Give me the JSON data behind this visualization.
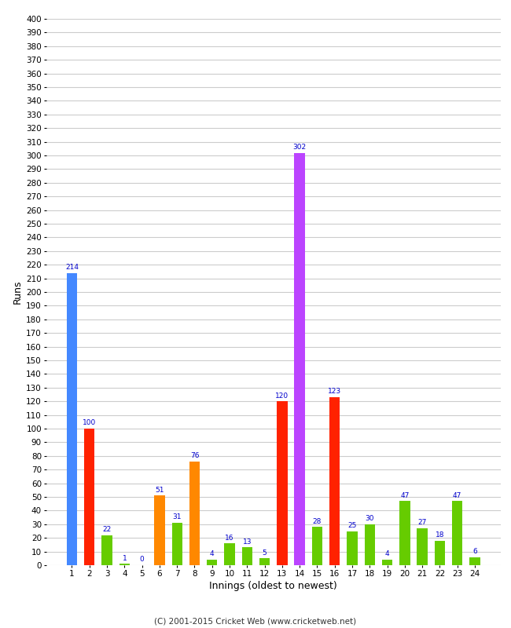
{
  "innings": [
    1,
    2,
    3,
    4,
    5,
    6,
    7,
    8,
    9,
    10,
    11,
    12,
    13,
    14,
    15,
    16,
    17,
    18,
    19,
    20,
    21,
    22,
    23,
    24
  ],
  "values": [
    214,
    100,
    22,
    1,
    0,
    51,
    31,
    76,
    4,
    16,
    13,
    5,
    120,
    302,
    28,
    123,
    25,
    30,
    4,
    47,
    27,
    18,
    47,
    6
  ],
  "colors": [
    "#4488ff",
    "#ff2200",
    "#66cc00",
    "#66cc00",
    "#66cc00",
    "#ff8800",
    "#66cc00",
    "#ff8800",
    "#66cc00",
    "#66cc00",
    "#66cc00",
    "#66cc00",
    "#ff2200",
    "#bb44ff",
    "#66cc00",
    "#ff2200",
    "#66cc00",
    "#66cc00",
    "#66cc00",
    "#66cc00",
    "#66cc00",
    "#66cc00",
    "#66cc00",
    "#66cc00"
  ],
  "xlabel": "Innings (oldest to newest)",
  "ylabel": "Runs",
  "ylim": [
    0,
    400
  ],
  "yticks": [
    0,
    10,
    20,
    30,
    40,
    50,
    60,
    70,
    80,
    90,
    100,
    110,
    120,
    130,
    140,
    150,
    160,
    170,
    180,
    190,
    200,
    210,
    220,
    230,
    240,
    250,
    260,
    270,
    280,
    290,
    300,
    310,
    320,
    330,
    340,
    350,
    360,
    370,
    380,
    390,
    400
  ],
  "footer": "(C) 2001-2015 Cricket Web (www.cricketweb.net)",
  "bg_color": "#ffffff",
  "plot_bg_color": "#ffffff",
  "grid_color": "#cccccc",
  "label_color": "#0000cc",
  "bar_width": 0.6
}
